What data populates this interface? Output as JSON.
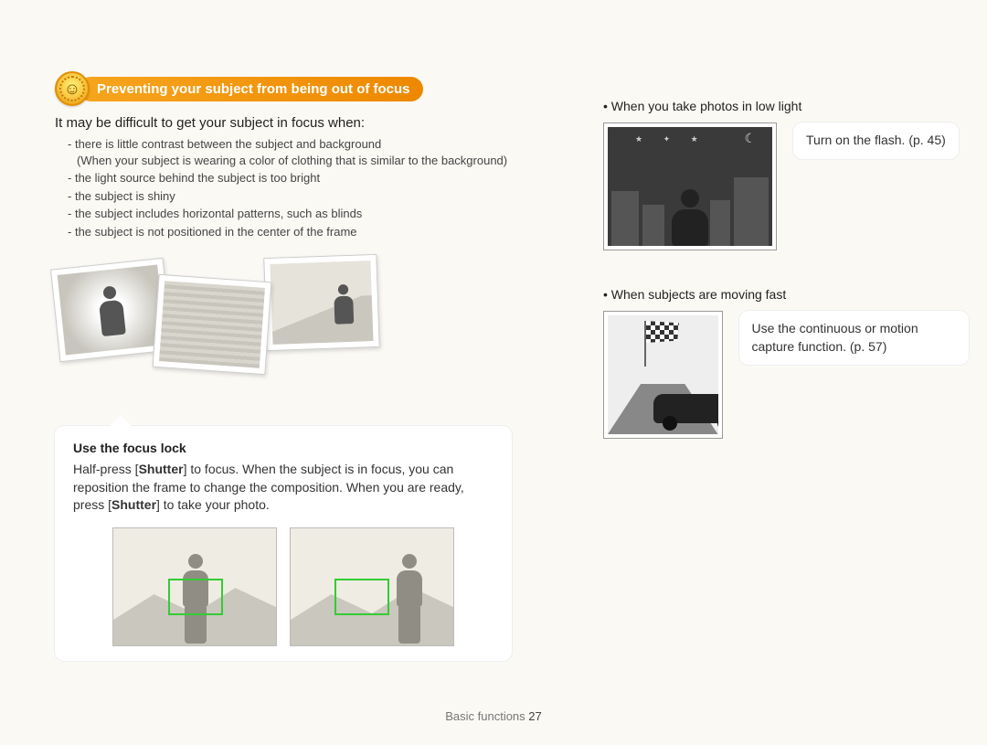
{
  "header": {
    "title": "Preventing your subject from being out of focus"
  },
  "left": {
    "intro": "It may be difficult to get your subject in focus when:",
    "bullets": [
      "there is little contrast between the subject and background",
      "the light source behind the subject is too bright",
      "the subject is shiny",
      "the subject includes horizontal patterns, such as blinds",
      "the subject is not positioned in the center of the frame"
    ],
    "bullet0_paren": "(When your subject is wearing a color of clothing that is similar to the background)",
    "callout": {
      "title": "Use the focus lock",
      "body_parts": [
        "Half-press [",
        "Shutter",
        "] to focus. When the subject is in focus, you can reposition the frame to change the composition. When you are ready, press [",
        "Shutter",
        "] to take your photo."
      ]
    }
  },
  "right": {
    "item1": {
      "label": "When you take photos in low light",
      "tip": "Turn on the flash. (p. 45)"
    },
    "item2": {
      "label": "When subjects are moving fast",
      "tip": "Use the continuous or motion capture function. (p. 57)"
    }
  },
  "footer": {
    "section": "Basic functions",
    "page": "27"
  },
  "colors": {
    "accent": "#ee8800",
    "focus_box": "#33cc33"
  }
}
